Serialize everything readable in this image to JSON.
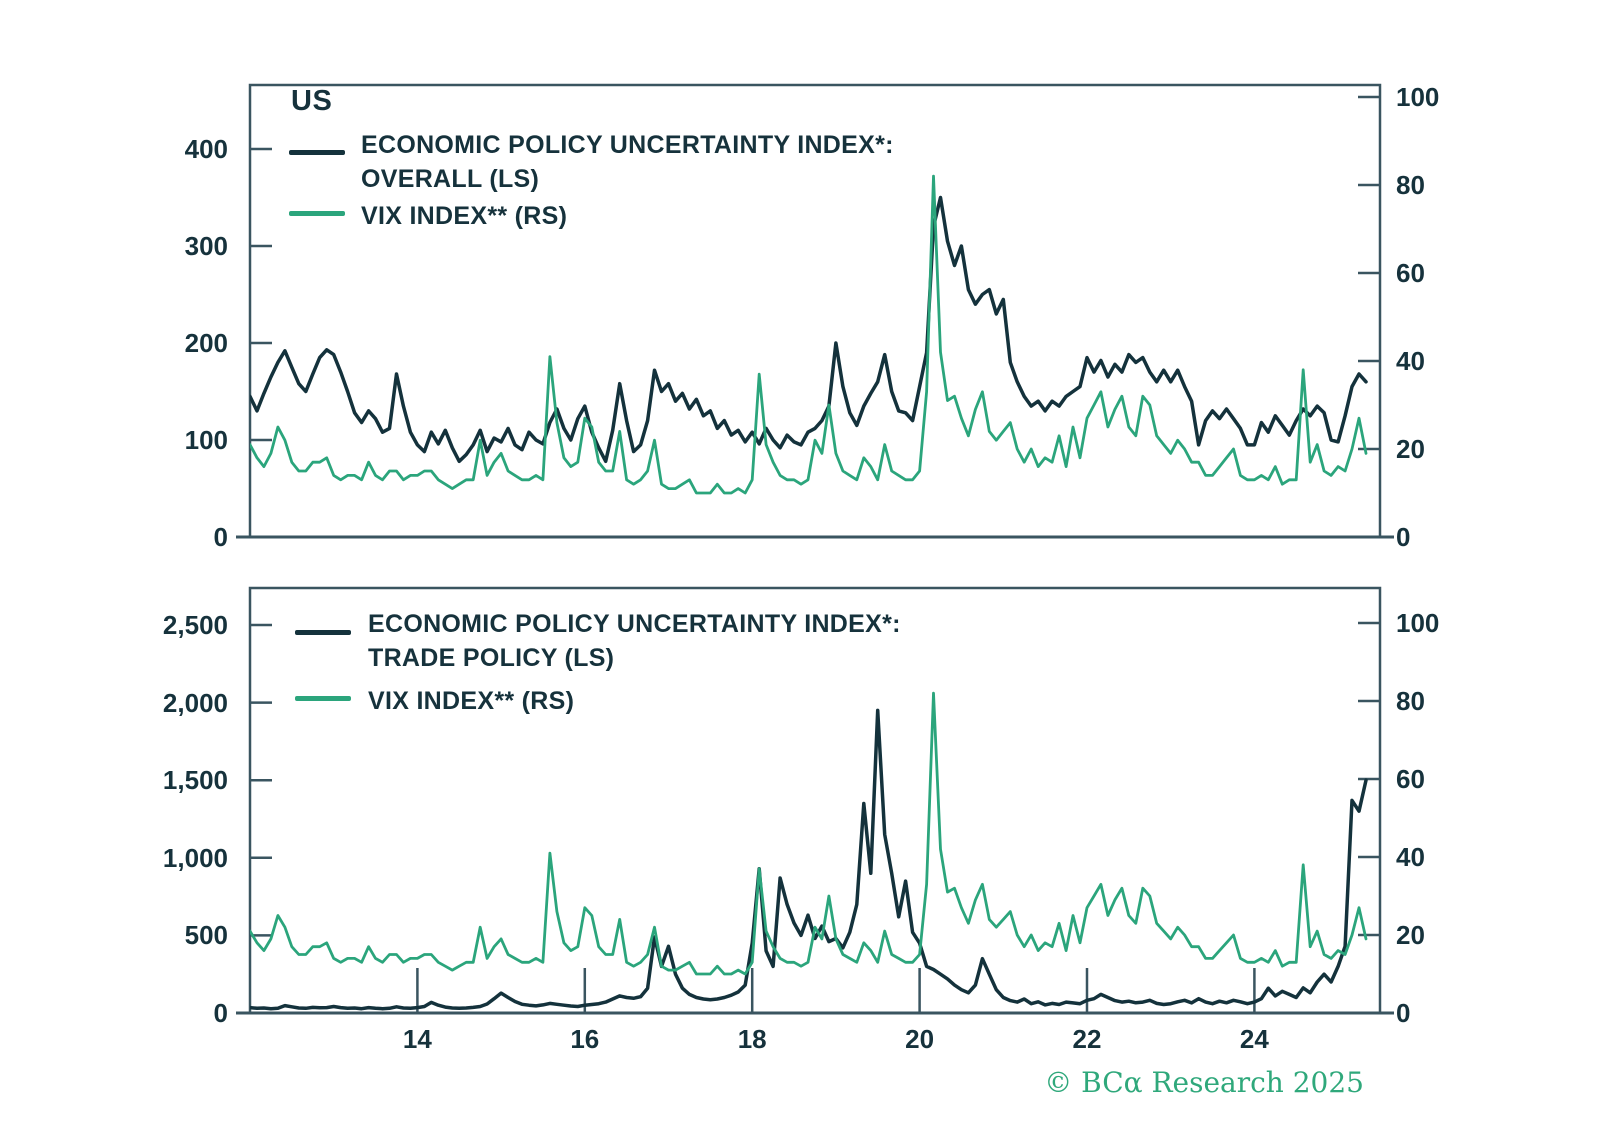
{
  "branding": {
    "copyright": "© BCα Research 2025",
    "color": "#2fa87b"
  },
  "colors": {
    "epu_line": "#14323c",
    "vix_line": "#2ba57c",
    "axis": "#3a5560",
    "text": "#16323c",
    "background": "#ffffff"
  },
  "chart_data": [
    {
      "type": "line",
      "title": "US",
      "legend_position": "top-left",
      "grid": false,
      "x": {
        "start_year": 2012.0,
        "step_years": 0.083333,
        "end_year": 2025.33,
        "unit": "years"
      },
      "x_axis": {
        "tick_years": [
          2014,
          2016,
          2018,
          2020,
          2022,
          2024
        ],
        "tick_labels": [
          "14",
          "16",
          "18",
          "20",
          "22",
          "24"
        ],
        "labels_shown": false
      },
      "left_axis": {
        "range": [
          0,
          466
        ],
        "tick_values": [
          0,
          100,
          200,
          300,
          400
        ],
        "tick_labels": [
          "0",
          "100",
          "200",
          "300",
          "400"
        ]
      },
      "right_axis": {
        "range": [
          0,
          103
        ],
        "tick_values": [
          0,
          20,
          40,
          60,
          80,
          100
        ],
        "tick_labels": [
          "0",
          "20",
          "40",
          "60",
          "80",
          "100"
        ]
      },
      "legend": [
        {
          "line1": "ECONOMIC POLICY UNCERTAINTY INDEX*:",
          "line2": "OVERALL (LS)",
          "color": "#14323c"
        },
        {
          "line1": "VIX INDEX** (RS)",
          "color": "#2ba57c"
        }
      ],
      "series": [
        {
          "name": "ECONOMIC POLICY UNCERTAINTY INDEX*: OVERALL (LS)",
          "axis": "left",
          "color": "#14323c",
          "width": 3.5,
          "values": [
            145,
            130,
            148,
            165,
            180,
            192,
            175,
            158,
            150,
            168,
            185,
            193,
            188,
            170,
            150,
            128,
            118,
            130,
            122,
            108,
            112,
            168,
            135,
            108,
            95,
            88,
            108,
            96,
            110,
            92,
            78,
            85,
            95,
            110,
            88,
            102,
            98,
            112,
            95,
            90,
            108,
            100,
            96,
            118,
            132,
            112,
            100,
            122,
            135,
            108,
            92,
            78,
            110,
            158,
            120,
            88,
            95,
            120,
            172,
            150,
            158,
            140,
            148,
            132,
            142,
            125,
            130,
            112,
            120,
            105,
            110,
            98,
            108,
            96,
            112,
            100,
            92,
            105,
            98,
            95,
            108,
            112,
            120,
            135,
            200,
            155,
            128,
            115,
            135,
            148,
            160,
            188,
            150,
            130,
            128,
            120,
            155,
            190,
            320,
            350,
            305,
            280,
            300,
            255,
            240,
            250,
            255,
            230,
            245,
            180,
            160,
            145,
            135,
            140,
            130,
            140,
            135,
            145,
            150,
            155,
            185,
            170,
            182,
            165,
            178,
            170,
            188,
            180,
            185,
            170,
            160,
            172,
            160,
            172,
            155,
            140,
            95,
            120,
            130,
            122,
            132,
            122,
            112,
            95,
            95,
            118,
            108,
            125,
            115,
            105,
            120,
            132,
            125,
            135,
            128,
            100,
            98,
            125,
            155,
            168,
            160
          ]
        },
        {
          "name": "VIX INDEX** (RS)",
          "axis": "right",
          "color": "#2ba57c",
          "width": 2.8,
          "values": [
            21,
            18,
            16,
            19,
            25,
            22,
            17,
            15,
            15,
            17,
            17,
            18,
            14,
            13,
            14,
            14,
            13,
            17,
            14,
            13,
            15,
            15,
            13,
            14,
            14,
            15,
            15,
            13,
            12,
            11,
            12,
            13,
            13,
            22,
            14,
            17,
            19,
            15,
            14,
            13,
            13,
            14,
            13,
            41,
            26,
            18,
            16,
            17,
            27,
            25,
            17,
            15,
            15,
            24,
            13,
            12,
            13,
            15,
            22,
            12,
            11,
            11,
            12,
            13,
            10,
            10,
            10,
            12,
            10,
            10,
            11,
            10,
            13,
            37,
            21,
            17,
            14,
            13,
            13,
            12,
            13,
            22,
            19,
            30,
            19,
            15,
            14,
            13,
            18,
            16,
            13,
            21,
            15,
            14,
            13,
            13,
            15,
            33,
            82,
            42,
            31,
            32,
            27,
            23,
            29,
            33,
            24,
            22,
            24,
            26,
            20,
            17,
            20,
            16,
            18,
            17,
            23,
            16,
            25,
            18,
            27,
            30,
            33,
            25,
            29,
            32,
            25,
            23,
            32,
            30,
            23,
            21,
            19,
            22,
            20,
            17,
            17,
            14,
            14,
            16,
            18,
            20,
            14,
            13,
            13,
            14,
            13,
            16,
            12,
            13,
            13,
            38,
            17,
            21,
            15,
            14,
            16,
            15,
            20,
            27,
            19
          ]
        }
      ]
    },
    {
      "type": "line",
      "title": "",
      "legend_position": "top-left",
      "grid": false,
      "x": {
        "start_year": 2012.0,
        "step_years": 0.083333,
        "end_year": 2025.33,
        "unit": "years"
      },
      "x_axis": {
        "tick_years": [
          2014,
          2016,
          2018,
          2020,
          2022,
          2024
        ],
        "tick_labels": [
          "14",
          "16",
          "18",
          "20",
          "22",
          "24"
        ],
        "labels_shown": true
      },
      "left_axis": {
        "range": [
          0,
          2738
        ],
        "tick_values": [
          0,
          500,
          1000,
          1500,
          2000,
          2500
        ],
        "tick_labels": [
          "0",
          "500",
          "1,000",
          "1,500",
          "2,000",
          "2,500"
        ]
      },
      "right_axis": {
        "range": [
          0,
          109
        ],
        "tick_values": [
          0,
          20,
          40,
          60,
          80,
          100
        ],
        "tick_labels": [
          "0",
          "20",
          "40",
          "60",
          "80",
          "100"
        ]
      },
      "legend": [
        {
          "line1": "ECONOMIC POLICY UNCERTAINTY INDEX*:",
          "line2": "TRADE POLICY (LS)",
          "color": "#14323c"
        },
        {
          "line1": "VIX INDEX** (RS)",
          "color": "#2ba57c"
        }
      ],
      "series": [
        {
          "name": "ECONOMIC POLICY UNCERTAINTY INDEX*: TRADE POLICY (LS)",
          "axis": "left",
          "color": "#14323c",
          "width": 3.5,
          "values": [
            35,
            30,
            32,
            28,
            30,
            48,
            40,
            32,
            30,
            36,
            34,
            35,
            42,
            35,
            30,
            32,
            28,
            35,
            30,
            28,
            30,
            40,
            32,
            30,
            35,
            42,
            68,
            50,
            38,
            32,
            30,
            32,
            36,
            42,
            58,
            92,
            128,
            100,
            74,
            56,
            50,
            46,
            52,
            62,
            56,
            50,
            45,
            42,
            50,
            55,
            60,
            70,
            90,
            110,
            100,
            95,
            105,
            160,
            490,
            300,
            430,
            250,
            160,
            120,
            100,
            90,
            85,
            90,
            100,
            115,
            135,
            180,
            450,
            930,
            400,
            300,
            870,
            700,
            580,
            500,
            630,
            480,
            560,
            460,
            480,
            420,
            520,
            700,
            1350,
            900,
            1950,
            1150,
            900,
            620,
            850,
            520,
            450,
            300,
            280,
            250,
            220,
            180,
            150,
            130,
            180,
            350,
            250,
            150,
            100,
            80,
            70,
            90,
            60,
            72,
            52,
            62,
            55,
            70,
            65,
            60,
            82,
            92,
            120,
            100,
            80,
            70,
            76,
            66,
            70,
            82,
            62,
            55,
            60,
            72,
            82,
            65,
            92,
            70,
            60,
            76,
            66,
            82,
            72,
            60,
            70,
            92,
            160,
            110,
            140,
            120,
            100,
            162,
            130,
            200,
            250,
            200,
            300,
            430,
            1370,
            1300,
            1500
          ]
        },
        {
          "name": "VIX INDEX** (RS)",
          "axis": "right",
          "color": "#2ba57c",
          "width": 2.8,
          "values": [
            21,
            18,
            16,
            19,
            25,
            22,
            17,
            15,
            15,
            17,
            17,
            18,
            14,
            13,
            14,
            14,
            13,
            17,
            14,
            13,
            15,
            15,
            13,
            14,
            14,
            15,
            15,
            13,
            12,
            11,
            12,
            13,
            13,
            22,
            14,
            17,
            19,
            15,
            14,
            13,
            13,
            14,
            13,
            41,
            26,
            18,
            16,
            17,
            27,
            25,
            17,
            15,
            15,
            24,
            13,
            12,
            13,
            15,
            22,
            12,
            11,
            11,
            12,
            13,
            10,
            10,
            10,
            12,
            10,
            10,
            11,
            10,
            13,
            37,
            21,
            17,
            14,
            13,
            13,
            12,
            13,
            22,
            19,
            30,
            19,
            15,
            14,
            13,
            18,
            16,
            13,
            21,
            15,
            14,
            13,
            13,
            15,
            33,
            82,
            42,
            31,
            32,
            27,
            23,
            29,
            33,
            24,
            22,
            24,
            26,
            20,
            17,
            20,
            16,
            18,
            17,
            23,
            16,
            25,
            18,
            27,
            30,
            33,
            25,
            29,
            32,
            25,
            23,
            32,
            30,
            23,
            21,
            19,
            22,
            20,
            17,
            17,
            14,
            14,
            16,
            18,
            20,
            14,
            13,
            13,
            14,
            13,
            16,
            12,
            13,
            13,
            38,
            17,
            21,
            15,
            14,
            16,
            15,
            20,
            27,
            19
          ]
        }
      ]
    }
  ]
}
